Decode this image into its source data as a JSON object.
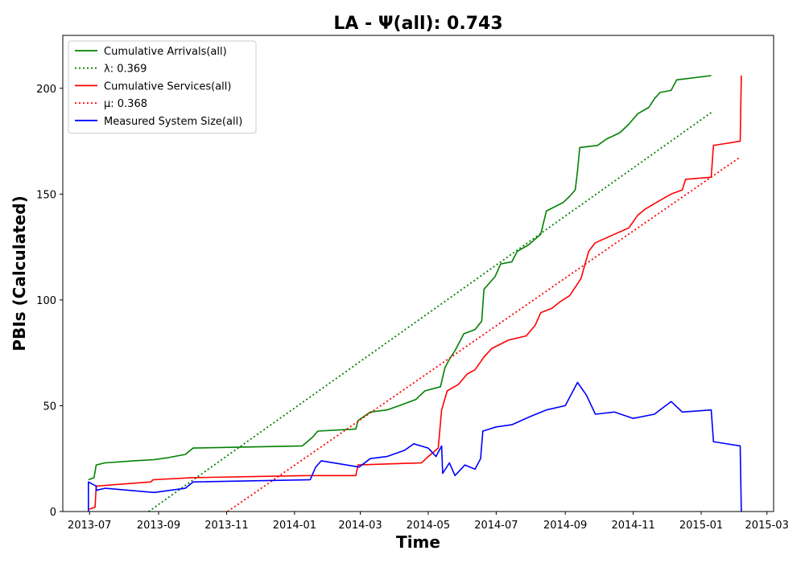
{
  "chart_data": {
    "type": "line",
    "title": "LA -  Ψ(all): 0.743",
    "xlabel": "Time",
    "ylabel": "PBIs (Calculated)",
    "xlim": [
      "2013-06-07",
      "2015-03-07"
    ],
    "ylim": [
      0,
      225
    ],
    "x_ticks": [
      "2013-07",
      "2013-09",
      "2013-11",
      "2014-01",
      "2014-03",
      "2014-05",
      "2014-07",
      "2014-09",
      "2014-11",
      "2015-01",
      "2015-03"
    ],
    "y_ticks": [
      0,
      50,
      100,
      150,
      200
    ],
    "grid": false,
    "legend_position": "top-left",
    "series": [
      {
        "name": "Cumulative Arrivals(all)",
        "color": "#008000",
        "style": "solid",
        "points": [
          [
            "2013-06-30",
            15
          ],
          [
            "2013-07-05",
            16
          ],
          [
            "2013-07-07",
            22
          ],
          [
            "2013-07-15",
            23
          ],
          [
            "2013-08-10",
            24
          ],
          [
            "2013-08-28",
            24.5
          ],
          [
            "2013-09-10",
            25.5
          ],
          [
            "2013-09-25",
            27
          ],
          [
            "2013-10-02",
            30
          ],
          [
            "2014-01-08",
            31
          ],
          [
            "2014-01-17",
            35
          ],
          [
            "2014-01-22",
            38
          ],
          [
            "2014-02-25",
            39
          ],
          [
            "2014-02-27",
            43
          ],
          [
            "2014-03-10",
            47
          ],
          [
            "2014-03-25",
            48
          ],
          [
            "2014-04-05",
            50
          ],
          [
            "2014-04-20",
            53
          ],
          [
            "2014-04-28",
            57
          ],
          [
            "2014-05-12",
            59
          ],
          [
            "2014-05-16",
            68
          ],
          [
            "2014-05-20",
            72
          ],
          [
            "2014-05-25",
            76
          ],
          [
            "2014-06-02",
            84
          ],
          [
            "2014-06-12",
            86
          ],
          [
            "2014-06-18",
            90
          ],
          [
            "2014-06-20",
            105
          ],
          [
            "2014-06-30",
            111
          ],
          [
            "2014-07-05",
            117
          ],
          [
            "2014-07-15",
            118
          ],
          [
            "2014-07-20",
            123
          ],
          [
            "2014-07-30",
            126
          ],
          [
            "2014-08-10",
            131
          ],
          [
            "2014-08-15",
            142
          ],
          [
            "2014-08-30",
            146
          ],
          [
            "2014-09-05",
            149
          ],
          [
            "2014-09-10",
            152
          ],
          [
            "2014-09-12",
            161
          ],
          [
            "2014-09-14",
            172
          ],
          [
            "2014-09-30",
            173
          ],
          [
            "2014-10-08",
            176
          ],
          [
            "2014-10-20",
            179
          ],
          [
            "2014-10-28",
            183
          ],
          [
            "2014-11-05",
            188
          ],
          [
            "2014-11-15",
            191
          ],
          [
            "2014-11-20",
            195
          ],
          [
            "2014-11-25",
            198
          ],
          [
            "2014-12-05",
            199
          ],
          [
            "2014-12-10",
            204
          ],
          [
            "2015-01-10",
            206
          ]
        ]
      },
      {
        "name": "λ: 0.369",
        "color": "#008000",
        "style": "dotted",
        "points": [
          [
            "2013-08-23",
            0
          ],
          [
            "2015-01-10",
            188.5
          ]
        ]
      },
      {
        "name": "Cumulative Services(all)",
        "color": "#ff0000",
        "style": "solid",
        "points": [
          [
            "2013-06-30",
            1
          ],
          [
            "2013-07-06",
            2
          ],
          [
            "2013-07-07",
            12
          ],
          [
            "2013-08-25",
            14
          ],
          [
            "2013-08-27",
            15
          ],
          [
            "2013-10-01",
            16
          ],
          [
            "2014-01-15",
            17
          ],
          [
            "2014-02-25",
            17
          ],
          [
            "2014-02-27",
            22
          ],
          [
            "2014-04-25",
            23
          ],
          [
            "2014-05-01",
            26
          ],
          [
            "2014-05-10",
            30
          ],
          [
            "2014-05-13",
            48
          ],
          [
            "2014-05-18",
            57
          ],
          [
            "2014-05-28",
            60
          ],
          [
            "2014-06-05",
            65
          ],
          [
            "2014-06-12",
            67
          ],
          [
            "2014-06-20",
            73
          ],
          [
            "2014-06-27",
            77
          ],
          [
            "2014-07-12",
            81
          ],
          [
            "2014-07-28",
            83
          ],
          [
            "2014-08-05",
            88
          ],
          [
            "2014-08-10",
            94
          ],
          [
            "2014-08-20",
            96
          ],
          [
            "2014-08-27",
            99
          ],
          [
            "2014-09-05",
            102
          ],
          [
            "2014-09-15",
            110
          ],
          [
            "2014-09-22",
            123
          ],
          [
            "2014-09-28",
            127
          ],
          [
            "2014-10-15",
            131
          ],
          [
            "2014-10-28",
            134
          ],
          [
            "2014-11-05",
            140
          ],
          [
            "2014-11-12",
            143
          ],
          [
            "2014-11-25",
            147
          ],
          [
            "2014-12-05",
            150
          ],
          [
            "2014-12-15",
            152
          ],
          [
            "2014-12-18",
            157
          ],
          [
            "2015-01-10",
            158
          ],
          [
            "2015-01-12",
            173
          ],
          [
            "2015-02-05",
            175
          ],
          [
            "2015-02-06",
            206
          ]
        ]
      },
      {
        "name": "μ: 0.368",
        "color": "#ff0000",
        "style": "dotted",
        "points": [
          [
            "2013-11-02",
            0
          ],
          [
            "2015-02-05",
            167.5
          ]
        ]
      },
      {
        "name": "Measured System Size(all)",
        "color": "#0000ff",
        "style": "solid",
        "points": [
          [
            "2013-06-30",
            0
          ],
          [
            "2013-06-30",
            14
          ],
          [
            "2013-07-07",
            12
          ],
          [
            "2013-07-07",
            10
          ],
          [
            "2013-07-15",
            11
          ],
          [
            "2013-08-28",
            9
          ],
          [
            "2013-09-25",
            11
          ],
          [
            "2013-10-02",
            14
          ],
          [
            "2014-01-15",
            15
          ],
          [
            "2014-01-20",
            21
          ],
          [
            "2014-01-25",
            24
          ],
          [
            "2014-02-28",
            21
          ],
          [
            "2014-03-10",
            25
          ],
          [
            "2014-03-25",
            26
          ],
          [
            "2014-04-10",
            29
          ],
          [
            "2014-04-18",
            32
          ],
          [
            "2014-05-01",
            30
          ],
          [
            "2014-05-08",
            26
          ],
          [
            "2014-05-13",
            31
          ],
          [
            "2014-05-14",
            18
          ],
          [
            "2014-05-20",
            23
          ],
          [
            "2014-05-25",
            17
          ],
          [
            "2014-06-03",
            22
          ],
          [
            "2014-06-12",
            20
          ],
          [
            "2014-06-17",
            25
          ],
          [
            "2014-06-19",
            38
          ],
          [
            "2014-07-01",
            40
          ],
          [
            "2014-07-15",
            41
          ],
          [
            "2014-08-01",
            45
          ],
          [
            "2014-08-15",
            48
          ],
          [
            "2014-09-01",
            50
          ],
          [
            "2014-09-12",
            61
          ],
          [
            "2014-09-20",
            55
          ],
          [
            "2014-09-28",
            46
          ],
          [
            "2014-10-15",
            47
          ],
          [
            "2014-11-01",
            44
          ],
          [
            "2014-11-20",
            46
          ],
          [
            "2014-12-05",
            52
          ],
          [
            "2014-12-15",
            47
          ],
          [
            "2015-01-10",
            48
          ],
          [
            "2015-01-12",
            33
          ],
          [
            "2015-02-05",
            31
          ],
          [
            "2015-02-06",
            0
          ]
        ]
      }
    ]
  }
}
